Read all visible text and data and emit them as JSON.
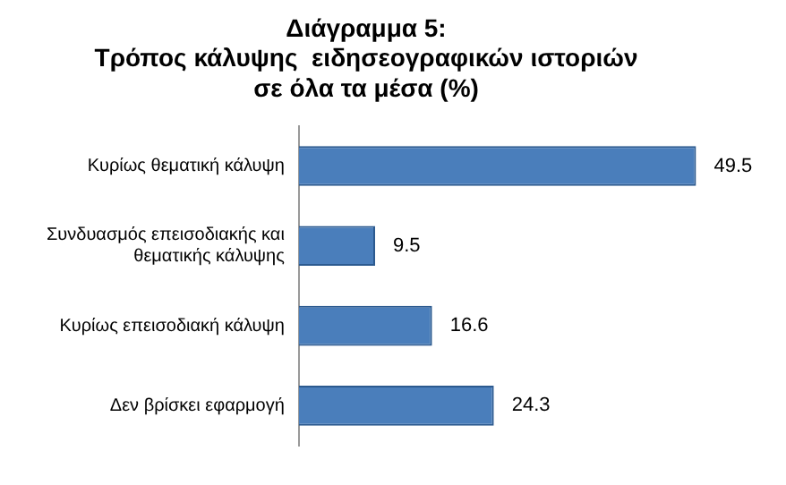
{
  "chart_data": {
    "type": "bar",
    "orientation": "horizontal",
    "title": "Διάγραμμα 5:\nΤρόπος κάλυψης  ειδησεογραφικών ιστοριών\nσε όλα τα μέσα (%)",
    "categories": [
      "Κυρίως θεματική κάλυψη",
      "Συνδυασμός επεισοδιακής και θεματικής κάλυψης",
      "Κυρίως επεισοδιακή κάλυψη",
      "Δεν βρίσκει εφαρμογή"
    ],
    "values": [
      49.5,
      9.5,
      16.6,
      24.3
    ],
    "color": "#4a7ebb",
    "data_labels": true,
    "legend": false
  }
}
